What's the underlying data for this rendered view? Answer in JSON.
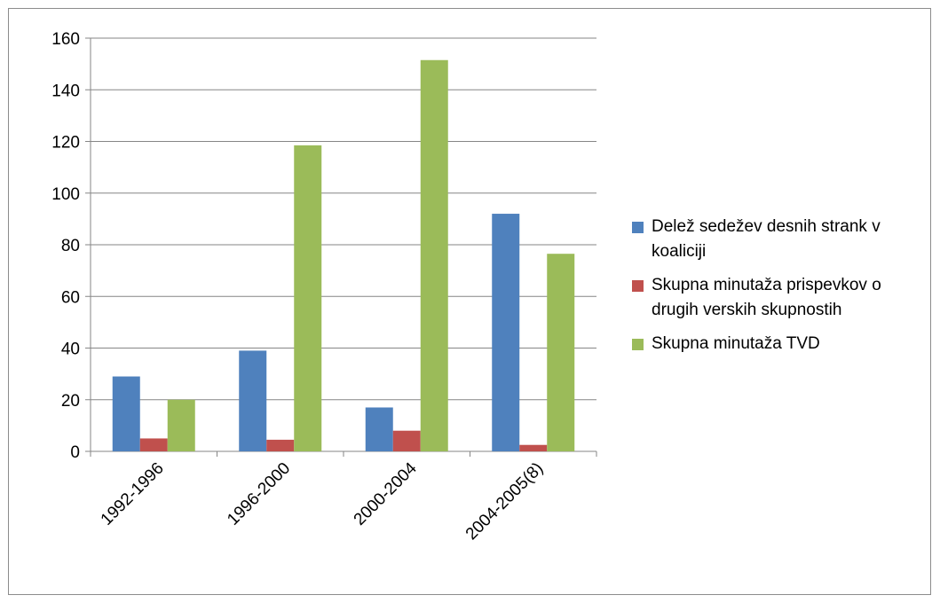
{
  "chart_data": {
    "type": "bar",
    "categories": [
      "1992-1996",
      "1996-2000",
      "2000-2004",
      "2004-2005(8)"
    ],
    "series": [
      {
        "name": "Delež sedežev desnih strank v koaliciji",
        "color": "#4f81bd",
        "values": [
          29,
          39,
          17,
          92
        ]
      },
      {
        "name": "Skupna minutaža prispevkov o drugih verskih skupnostih",
        "color": "#c0504d",
        "values": [
          5,
          4.5,
          8,
          2.5
        ]
      },
      {
        "name": "Skupna minutaža TVD",
        "color": "#9bbb59",
        "values": [
          20,
          118.5,
          151.5,
          76.5
        ]
      }
    ],
    "ylim": [
      0,
      160
    ],
    "yticks": [
      0,
      20,
      40,
      60,
      80,
      100,
      120,
      140,
      160
    ],
    "grid": true,
    "legend_position": "right",
    "title": "",
    "xlabel": "",
    "ylabel": ""
  }
}
